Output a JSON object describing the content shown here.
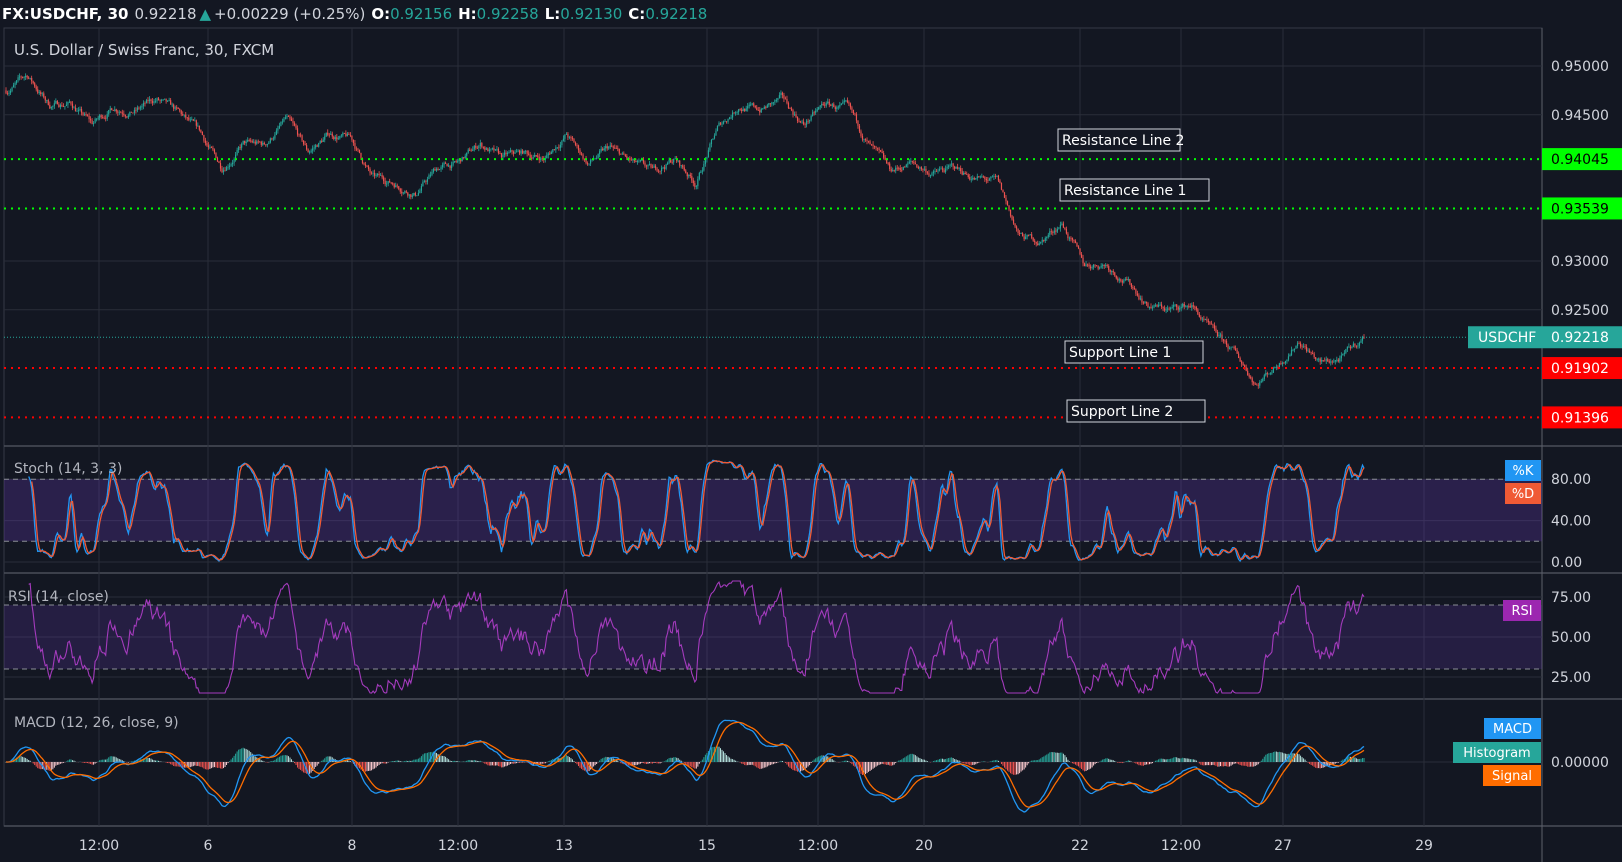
{
  "header": {
    "symbol": "FX:USDCHF, 30",
    "last": "0.92218",
    "change": "+0.00229 (+0.25%)",
    "o_label": "O:",
    "o": "0.92156",
    "h_label": "H:",
    "h": "0.92258",
    "l_label": "L:",
    "l": "0.92130",
    "c_label": "C:",
    "c": "0.92218",
    "direction_icon": "triangle-up-icon"
  },
  "colors": {
    "background": "#131722",
    "grid": "#2a2e39",
    "up": "#26a69a",
    "down": "#ef5350",
    "resistance": "#00ff00",
    "support": "#ff0000",
    "stoch_k": "#2196f3",
    "stoch_d": "#f05a35",
    "rsi": "#9c27b0",
    "macd": "#2196f3",
    "signal": "#ff6d00",
    "histogram": "#26a69a"
  },
  "chart_data": {
    "type": "candlestick",
    "title": "U.S. Dollar / Swiss Franc, 30, FXCM",
    "price": {
      "ylim": [
        0.9115,
        0.9525
      ],
      "ticks": [
        "0.95000",
        "0.94500",
        "0.93000",
        "0.92500"
      ],
      "close_samples": [
        0.9475,
        0.949,
        0.946,
        0.9462,
        0.944,
        0.9458,
        0.9455,
        0.9465,
        0.945,
        0.943,
        0.9395,
        0.942,
        0.9418,
        0.9445,
        0.941,
        0.943,
        0.9425,
        0.9385,
        0.938,
        0.937,
        0.9395,
        0.94,
        0.942,
        0.9405,
        0.941,
        0.9405,
        0.943,
        0.94,
        0.9415,
        0.94,
        0.939,
        0.9405,
        0.938,
        0.9435,
        0.946,
        0.9455,
        0.9465,
        0.944,
        0.946,
        0.9455,
        0.942,
        0.939,
        0.94,
        0.939,
        0.9395,
        0.9385,
        0.938,
        0.9325,
        0.932,
        0.934,
        0.9295,
        0.9298,
        0.928,
        0.9255,
        0.925,
        0.9255,
        0.9225,
        0.9205,
        0.9175,
        0.9195,
        0.922,
        0.9195,
        0.92,
        0.92218
      ],
      "current": {
        "label": "USDCHF",
        "value": 0.92218,
        "text": "0.92218"
      },
      "lines": [
        {
          "name": "Resistance Line 2",
          "value": 0.94045,
          "text": "0.94045",
          "kind": "resistance"
        },
        {
          "name": "Resistance Line 1",
          "value": 0.93539,
          "text": "0.93539",
          "kind": "resistance"
        },
        {
          "name": "Support Line 1",
          "value": 0.91902,
          "text": "0.91902",
          "kind": "support"
        },
        {
          "name": "Support Line 2",
          "value": 0.91396,
          "text": "0.91396",
          "kind": "support"
        }
      ]
    },
    "stoch": {
      "title": "Stoch (14, 3, 3)",
      "ticks": [
        "80.00",
        "40.00",
        "0.00"
      ],
      "bands": [
        20,
        80
      ],
      "k_label": "%K",
      "d_label": "%D"
    },
    "rsi": {
      "title": "RSI (14, close)",
      "ticks": [
        "75.00",
        "50.00",
        "25.00"
      ],
      "bands": [
        30,
        70
      ],
      "label": "RSI"
    },
    "macd": {
      "title": "MACD (12, 26, close, 9)",
      "ticks": [
        "0.00000"
      ],
      "macd_label": "MACD",
      "hist_label": "Histogram",
      "signal_label": "Signal"
    },
    "x_ticks": [
      "12:00",
      "6",
      "8",
      "12:00",
      "13",
      "15",
      "12:00",
      "20",
      "22",
      "12:00",
      "27",
      "29"
    ]
  }
}
